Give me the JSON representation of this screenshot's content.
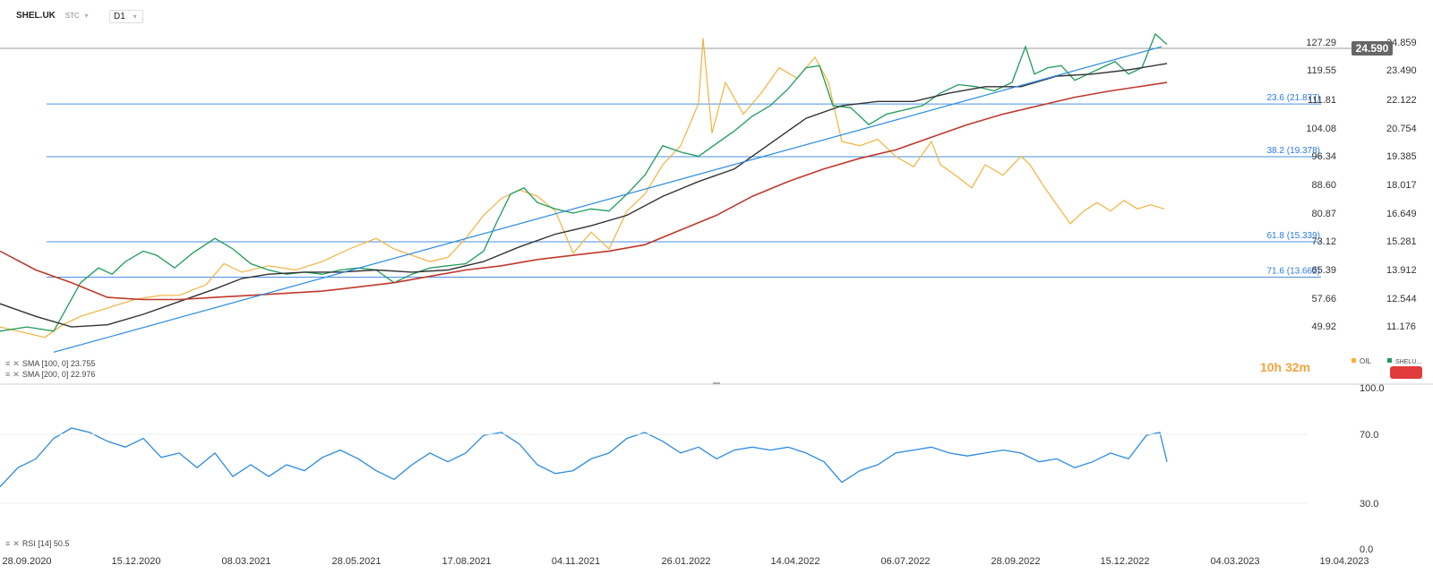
{
  "header": {
    "symbol": "SHEL.UK",
    "sub": "STC",
    "interval": "D1"
  },
  "indicators": {
    "sma100": "SMA [100, 0]  23.755",
    "sma200": "SMA [200, 0]  22.976",
    "rsi": "RSI [14]  50.5"
  },
  "timer": "10h 32m",
  "legend": {
    "oil": "OIL",
    "shel": "SHELU..."
  },
  "colors": {
    "shel_up": "#1e9c5a",
    "shel_down": "#e23b3b",
    "oil": "#f3b23c",
    "sma100": "#333333",
    "sma200": "#c0392b",
    "trend": "#2a8be4",
    "rsi": "#2a8be4",
    "fib": "#2a7be4",
    "price_tag": "#666666",
    "alert": "#e23b3b"
  },
  "chart_data": [
    {
      "type": "line",
      "x_ticks": [
        "28.09.2020",
        "15.12.2020",
        "08.03.2021",
        "28.05.2021",
        "17.08.2021",
        "04.11.2021",
        "26.01.2022",
        "14.04.2022",
        "06.07.2022",
        "28.09.2022",
        "15.12.2022",
        "04.03.2023",
        "19.04.2023"
      ],
      "y_ticks_left": [
        "127.29",
        "119.55",
        "111.81",
        "104.08",
        "96.34",
        "88.60",
        "80.87",
        "73.12",
        "65.39",
        "57.66",
        "49.92"
      ],
      "y_ticks_right": [
        "24.859",
        "23.490",
        "22.122",
        "20.754",
        "19.385",
        "18.017",
        "16.649",
        "15.281",
        "13.912",
        "12.544",
        "11.176"
      ],
      "ylim_left": [
        44.0,
        131.0
      ],
      "ylim_right": [
        10.14,
        25.46
      ],
      "current_price": "24.590",
      "fib_levels": [
        {
          "label": "23.6 (21.877)",
          "value": 21.877
        },
        {
          "label": "38.2 (19.378)",
          "value": 19.378
        },
        {
          "label": "61.8 (15.339)",
          "value": 15.339
        },
        {
          "label": "71.6 (13.662)",
          "value": 13.662
        }
      ],
      "series": [
        {
          "name": "SHEL.UK",
          "points": [
            [
              0,
              11.1
            ],
            [
              30,
              11.3
            ],
            [
              60,
              11.1
            ],
            [
              90,
              13.4
            ],
            [
              110,
              14.1
            ],
            [
              125,
              13.8
            ],
            [
              140,
              14.4
            ],
            [
              160,
              14.9
            ],
            [
              175,
              14.7
            ],
            [
              195,
              14.1
            ],
            [
              215,
              14.8
            ],
            [
              240,
              15.5
            ],
            [
              260,
              15.0
            ],
            [
              280,
              14.3
            ],
            [
              300,
              14.0
            ],
            [
              320,
              13.8
            ],
            [
              340,
              13.9
            ],
            [
              360,
              13.8
            ],
            [
              380,
              14.0
            ],
            [
              400,
              14.1
            ],
            [
              420,
              14.0
            ],
            [
              440,
              13.4
            ],
            [
              460,
              13.8
            ],
            [
              480,
              14.1
            ],
            [
              500,
              14.2
            ],
            [
              520,
              14.3
            ],
            [
              540,
              14.9
            ],
            [
              555,
              16.3
            ],
            [
              570,
              17.6
            ],
            [
              585,
              17.9
            ],
            [
              600,
              17.2
            ],
            [
              620,
              16.9
            ],
            [
              640,
              16.7
            ],
            [
              660,
              16.9
            ],
            [
              680,
              16.8
            ],
            [
              700,
              17.6
            ],
            [
              720,
              18.5
            ],
            [
              740,
              19.9
            ],
            [
              760,
              19.6
            ],
            [
              780,
              19.4
            ],
            [
              800,
              20.0
            ],
            [
              820,
              20.6
            ],
            [
              840,
              21.3
            ],
            [
              860,
              21.8
            ],
            [
              880,
              22.6
            ],
            [
              900,
              23.6
            ],
            [
              915,
              23.7
            ],
            [
              930,
              21.8
            ],
            [
              950,
              21.7
            ],
            [
              970,
              20.9
            ],
            [
              990,
              21.4
            ],
            [
              1010,
              21.6
            ],
            [
              1030,
              21.8
            ],
            [
              1050,
              22.4
            ],
            [
              1070,
              22.8
            ],
            [
              1090,
              22.7
            ],
            [
              1110,
              22.5
            ],
            [
              1130,
              22.9
            ],
            [
              1145,
              24.6
            ],
            [
              1155,
              23.3
            ],
            [
              1170,
              23.6
            ],
            [
              1185,
              23.7
            ],
            [
              1200,
              23.0
            ],
            [
              1215,
              23.3
            ],
            [
              1230,
              23.6
            ],
            [
              1245,
              23.9
            ],
            [
              1260,
              23.3
            ],
            [
              1275,
              23.6
            ],
            [
              1290,
              25.2
            ],
            [
              1303,
              24.7
            ]
          ]
        },
        {
          "name": "OIL",
          "points": [
            [
              0,
              11.3
            ],
            [
              30,
              11.0
            ],
            [
              50,
              10.8
            ],
            [
              70,
              11.4
            ],
            [
              90,
              11.8
            ],
            [
              120,
              12.2
            ],
            [
              150,
              12.6
            ],
            [
              180,
              12.8
            ],
            [
              200,
              12.8
            ],
            [
              230,
              13.3
            ],
            [
              250,
              14.3
            ],
            [
              270,
              13.9
            ],
            [
              300,
              14.2
            ],
            [
              330,
              14.0
            ],
            [
              360,
              14.4
            ],
            [
              390,
              15.0
            ],
            [
              420,
              15.5
            ],
            [
              440,
              15.0
            ],
            [
              460,
              14.7
            ],
            [
              480,
              14.4
            ],
            [
              500,
              14.6
            ],
            [
              520,
              15.5
            ],
            [
              540,
              16.6
            ],
            [
              560,
              17.4
            ],
            [
              580,
              17.8
            ],
            [
              600,
              17.5
            ],
            [
              620,
              16.8
            ],
            [
              640,
              14.8
            ],
            [
              660,
              15.8
            ],
            [
              680,
              15.0
            ],
            [
              700,
              16.8
            ],
            [
              720,
              17.6
            ],
            [
              740,
              19.0
            ],
            [
              760,
              19.9
            ],
            [
              780,
              21.9
            ],
            [
              785,
              25.0
            ],
            [
              795,
              20.5
            ],
            [
              810,
              22.9
            ],
            [
              830,
              21.4
            ],
            [
              850,
              22.4
            ],
            [
              870,
              23.6
            ],
            [
              890,
              23.1
            ],
            [
              910,
              24.1
            ],
            [
              925,
              22.9
            ],
            [
              940,
              20.1
            ],
            [
              960,
              19.9
            ],
            [
              980,
              20.2
            ],
            [
              1000,
              19.4
            ],
            [
              1020,
              18.9
            ],
            [
              1040,
              20.1
            ],
            [
              1050,
              19.0
            ],
            [
              1070,
              18.4
            ],
            [
              1085,
              17.9
            ],
            [
              1100,
              19.0
            ],
            [
              1120,
              18.5
            ],
            [
              1140,
              19.4
            ],
            [
              1150,
              19.0
            ],
            [
              1165,
              18.0
            ],
            [
              1180,
              17.1
            ],
            [
              1195,
              16.2
            ],
            [
              1210,
              16.8
            ],
            [
              1225,
              17.2
            ],
            [
              1240,
              16.8
            ],
            [
              1255,
              17.3
            ],
            [
              1270,
              16.9
            ],
            [
              1285,
              17.1
            ],
            [
              1300,
              16.9
            ]
          ]
        },
        {
          "name": "SMA 100",
          "points": [
            [
              0,
              12.4
            ],
            [
              40,
              11.8
            ],
            [
              80,
              11.3
            ],
            [
              120,
              11.4
            ],
            [
              160,
              11.9
            ],
            [
              200,
              12.5
            ],
            [
              240,
              13.1
            ],
            [
              270,
              13.6
            ],
            [
              300,
              13.8
            ],
            [
              340,
              13.9
            ],
            [
              380,
              13.9
            ],
            [
              420,
              14.0
            ],
            [
              460,
              13.9
            ],
            [
              500,
              14.0
            ],
            [
              540,
              14.4
            ],
            [
              580,
              15.1
            ],
            [
              620,
              15.7
            ],
            [
              660,
              16.1
            ],
            [
              700,
              16.6
            ],
            [
              740,
              17.5
            ],
            [
              780,
              18.2
            ],
            [
              820,
              18.8
            ],
            [
              860,
              20.0
            ],
            [
              900,
              21.2
            ],
            [
              940,
              21.8
            ],
            [
              980,
              22.0
            ],
            [
              1020,
              22.0
            ],
            [
              1060,
              22.4
            ],
            [
              1100,
              22.7
            ],
            [
              1140,
              22.7
            ],
            [
              1180,
              23.2
            ],
            [
              1220,
              23.3
            ],
            [
              1260,
              23.5
            ],
            [
              1303,
              23.8
            ]
          ]
        },
        {
          "name": "SMA 200",
          "points": [
            [
              0,
              14.9
            ],
            [
              40,
              14.0
            ],
            [
              80,
              13.4
            ],
            [
              120,
              12.7
            ],
            [
              160,
              12.6
            ],
            [
              200,
              12.6
            ],
            [
              240,
              12.7
            ],
            [
              280,
              12.8
            ],
            [
              320,
              12.9
            ],
            [
              360,
              13.0
            ],
            [
              400,
              13.2
            ],
            [
              440,
              13.4
            ],
            [
              480,
              13.7
            ],
            [
              520,
              14.0
            ],
            [
              560,
              14.2
            ],
            [
              600,
              14.5
            ],
            [
              640,
              14.7
            ],
            [
              680,
              14.9
            ],
            [
              720,
              15.2
            ],
            [
              760,
              15.9
            ],
            [
              800,
              16.6
            ],
            [
              840,
              17.5
            ],
            [
              880,
              18.2
            ],
            [
              920,
              18.8
            ],
            [
              960,
              19.3
            ],
            [
              1000,
              19.7
            ],
            [
              1040,
              20.3
            ],
            [
              1080,
              20.9
            ],
            [
              1120,
              21.4
            ],
            [
              1160,
              21.8
            ],
            [
              1200,
              22.2
            ],
            [
              1240,
              22.5
            ],
            [
              1303,
              22.9
            ]
          ]
        }
      ],
      "trendline": [
        [
          60,
          10.1
        ],
        [
          1297,
          24.6
        ]
      ]
    },
    {
      "type": "line",
      "name": "RSI",
      "y_ticks": [
        "100.0",
        "70.0",
        "30.0",
        "0.0"
      ],
      "ylim": [
        0,
        100
      ],
      "values": [
        [
          0,
          35
        ],
        [
          20,
          48
        ],
        [
          40,
          54
        ],
        [
          60,
          68
        ],
        [
          80,
          75
        ],
        [
          100,
          72
        ],
        [
          120,
          66
        ],
        [
          140,
          62
        ],
        [
          160,
          68
        ],
        [
          180,
          55
        ],
        [
          200,
          58
        ],
        [
          220,
          48
        ],
        [
          240,
          58
        ],
        [
          260,
          42
        ],
        [
          280,
          50
        ],
        [
          300,
          42
        ],
        [
          320,
          50
        ],
        [
          340,
          46
        ],
        [
          360,
          55
        ],
        [
          380,
          60
        ],
        [
          400,
          54
        ],
        [
          420,
          46
        ],
        [
          440,
          40
        ],
        [
          460,
          50
        ],
        [
          480,
          58
        ],
        [
          500,
          52
        ],
        [
          520,
          58
        ],
        [
          540,
          70
        ],
        [
          560,
          72
        ],
        [
          580,
          64
        ],
        [
          600,
          50
        ],
        [
          620,
          44
        ],
        [
          640,
          46
        ],
        [
          660,
          54
        ],
        [
          680,
          58
        ],
        [
          700,
          68
        ],
        [
          720,
          72
        ],
        [
          740,
          66
        ],
        [
          760,
          58
        ],
        [
          780,
          62
        ],
        [
          800,
          54
        ],
        [
          820,
          60
        ],
        [
          840,
          62
        ],
        [
          860,
          60
        ],
        [
          880,
          62
        ],
        [
          900,
          58
        ],
        [
          920,
          52
        ],
        [
          940,
          38
        ],
        [
          960,
          46
        ],
        [
          980,
          50
        ],
        [
          1000,
          58
        ],
        [
          1020,
          60
        ],
        [
          1040,
          62
        ],
        [
          1060,
          58
        ],
        [
          1080,
          56
        ],
        [
          1100,
          58
        ],
        [
          1120,
          60
        ],
        [
          1140,
          58
        ],
        [
          1160,
          52
        ],
        [
          1180,
          54
        ],
        [
          1200,
          48
        ],
        [
          1220,
          52
        ],
        [
          1240,
          58
        ],
        [
          1260,
          54
        ],
        [
          1280,
          70
        ],
        [
          1295,
          72
        ],
        [
          1303,
          52
        ]
      ]
    }
  ]
}
